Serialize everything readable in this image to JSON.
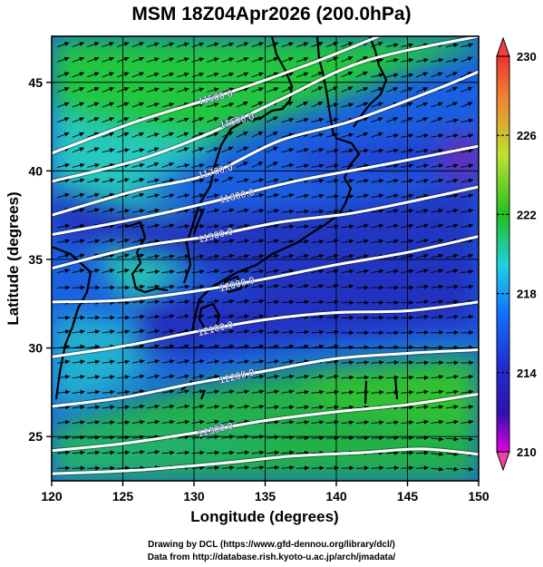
{
  "title": "MSM 18Z04Apr2026 (200.0hPa)",
  "map": {
    "xlabel": "Longitude (degrees)",
    "ylabel": "Latitude  (degrees)",
    "x_ticks": [
      "120",
      "125",
      "130",
      "135",
      "140",
      "145",
      "150"
    ],
    "y_ticks": [
      "25",
      "30",
      "35",
      "40",
      "45"
    ],
    "xlim": [
      120,
      150
    ],
    "ylim": [
      22.5,
      47.6
    ],
    "grid": true
  },
  "colorbar": {
    "ticks": [
      "210",
      "214",
      "218",
      "222",
      "226",
      "230"
    ],
    "colors": [
      "#e000e0",
      "#2020c0",
      "#1060ff",
      "#20d0e0",
      "#20c020",
      "#d0e030",
      "#ff4030"
    ]
  },
  "contours": [
    {
      "label": "11500.0",
      "points": [
        [
          120,
          41.0
        ],
        [
          126,
          42.8
        ],
        [
          132,
          44.3
        ],
        [
          138,
          46.0
        ],
        [
          143,
          47.6
        ]
      ]
    },
    {
      "label": "11600.0",
      "points": [
        [
          120,
          39.4
        ],
        [
          126,
          40.6
        ],
        [
          131,
          42.1
        ],
        [
          136,
          44.0
        ],
        [
          142,
          46.2
        ],
        [
          150,
          47.6
        ]
      ]
    },
    {
      "label": "11700.0",
      "points": [
        [
          120,
          37.5
        ],
        [
          126,
          38.9
        ],
        [
          131,
          39.8
        ],
        [
          136,
          41.7
        ],
        [
          141,
          42.8
        ],
        [
          147,
          44.6
        ],
        [
          150,
          45.6
        ]
      ]
    },
    {
      "label": "11800.0",
      "points": [
        [
          120,
          36.4
        ],
        [
          126,
          37.3
        ],
        [
          131,
          38.2
        ],
        [
          137,
          39.4
        ],
        [
          143,
          40.3
        ],
        [
          150,
          41.4
        ]
      ]
    },
    {
      "label": "11900.0",
      "points": [
        [
          120,
          34.5
        ],
        [
          126,
          35.7
        ],
        [
          131,
          36.3
        ],
        [
          136,
          37.1
        ],
        [
          141,
          37.6
        ],
        [
          146,
          38.4
        ],
        [
          150,
          39.1
        ]
      ]
    },
    {
      "label": "12000.0",
      "points": [
        [
          120,
          32.6
        ],
        [
          125,
          32.7
        ],
        [
          130,
          33.2
        ],
        [
          135,
          33.9
        ],
        [
          140,
          34.7
        ],
        [
          145,
          35.4
        ],
        [
          150,
          36.3
        ]
      ]
    },
    {
      "label": "12100.0",
      "points": [
        [
          120,
          29.5
        ],
        [
          125,
          30.1
        ],
        [
          130,
          30.9
        ],
        [
          135,
          31.6
        ],
        [
          140,
          32.0
        ],
        [
          145,
          32.1
        ],
        [
          150,
          32.6
        ]
      ]
    },
    {
      "label": "12200.0",
      "points": [
        [
          120,
          26.7
        ],
        [
          125,
          27.2
        ],
        [
          130,
          28.0
        ],
        [
          135,
          28.7
        ],
        [
          140,
          29.4
        ],
        [
          145,
          29.7
        ],
        [
          150,
          29.9
        ]
      ]
    },
    {
      "label": "12300.0",
      "points": [
        [
          120,
          24.2
        ],
        [
          125,
          24.6
        ],
        [
          130,
          25.2
        ],
        [
          135,
          25.9
        ],
        [
          140,
          26.4
        ],
        [
          145,
          26.8
        ],
        [
          150,
          27.4
        ]
      ]
    },
    {
      "label": "",
      "points": [
        [
          120,
          22.9
        ],
        [
          126,
          23.1
        ],
        [
          132,
          23.5
        ],
        [
          137,
          23.9
        ],
        [
          142,
          24.1
        ],
        [
          146,
          24.3
        ],
        [
          150,
          24.0
        ]
      ]
    }
  ],
  "credits": [
    "Drawing by DCL (https://www.gfd-dennou.org/library/dcl/)",
    "Data from http://database.rish.kyoto-u.ac.jp/arch/jmadata/"
  ]
}
